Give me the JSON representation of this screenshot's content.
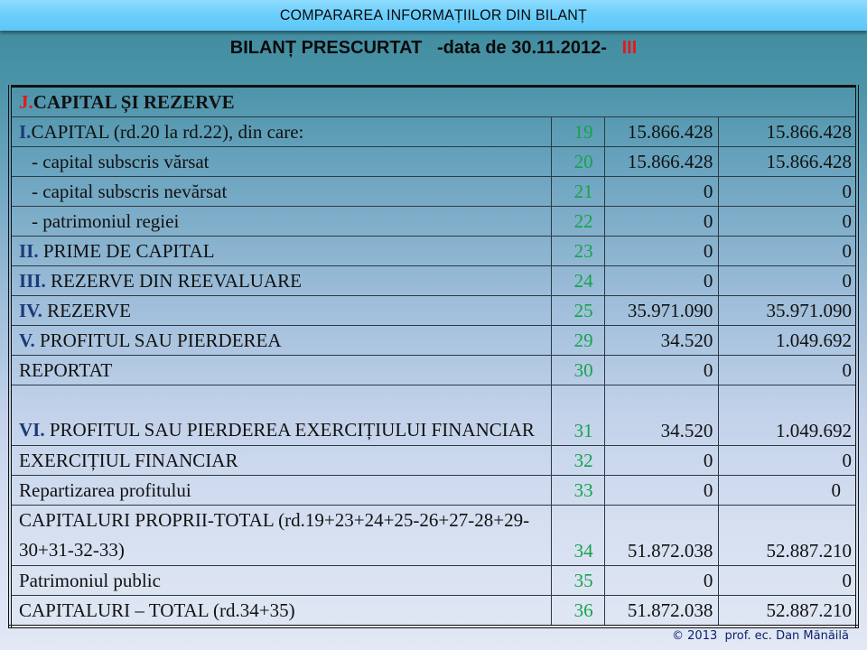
{
  "header": {
    "banner_title": "COMPARAREA  INFORMAȚIILOR  DIN BILANȚ",
    "subtitle_main": "BILANȚ PRESCURTAT   -data de 30.11.2012-   ",
    "subtitle_roman": "III"
  },
  "table": {
    "section_title": {
      "prefix": "J.",
      "text": "CAPITAL ȘI REZERVE"
    },
    "rows": [
      {
        "prefix": "I.",
        "label": "CAPITAL (rd.20 la rd.22), din care:",
        "code": "19",
        "v1": "15.866.428",
        "v2": "15.866.428"
      },
      {
        "prefix": "",
        "label": "- capital subscris vărsat",
        "code": "20",
        "v1": "15.866.428",
        "v2": "15.866.428"
      },
      {
        "prefix": "",
        "label": "- capital subscris nevărsat",
        "code": "21",
        "v1": "0",
        "v2": "0"
      },
      {
        "prefix": "",
        "label": "- patrimoniul regiei",
        "code": "22",
        "v1": "0",
        "v2": "0"
      },
      {
        "prefix": "II.",
        "label": " PRIME DE CAPITAL",
        "code": "23",
        "v1": "0",
        "v2": "0"
      },
      {
        "prefix": "III.",
        "label": " REZERVE DIN REEVALUARE",
        "code": "24",
        "v1": "0",
        "v2": "0"
      },
      {
        "prefix": "IV.",
        "label": " REZERVE",
        "code": "25",
        "v1": "35.971.090",
        "v2": "35.971.090"
      },
      {
        "prefix": "V.",
        "label": " PROFITUL SAU PIERDEREA",
        "code": "29",
        "v1": "34.520",
        "v2": "1.049.692"
      },
      {
        "prefix": "",
        "label": "REPORTAT",
        "code": "30",
        "v1": "0",
        "v2": "0"
      },
      {
        "prefix": "VI.",
        "label": " PROFITUL SAU  PIERDEREA EXERCIȚIULUI FINANCIAR",
        "code": "31",
        "v1": "34.520",
        "v2": "1.049.692"
      },
      {
        "prefix": "",
        "label": "EXERCIȚIUL FINANCIAR",
        "code": "32",
        "v1": "0",
        "v2": "0"
      },
      {
        "prefix": "",
        "label": "Repartizarea profitului",
        "code": "33",
        "v1": "0",
        "v2": "0"
      },
      {
        "prefix": "",
        "label": "CAPITALURI PROPRII-TOTAL (rd.19+23+24+25-26+27-28+29-30+31-32-33)",
        "code": "34",
        "v1": "51.872.038",
        "v2": "52.887.210"
      },
      {
        "prefix": "",
        "label": "Patrimoniul public",
        "code": "35",
        "v1": "0",
        "v2": "0"
      },
      {
        "prefix": "",
        "label": "CAPITALURI – TOTAL (rd.34+35)",
        "code": "36",
        "v1": "51.872.038",
        "v2": "52.887.210"
      }
    ]
  },
  "footer": {
    "copyright": "© 2013  prof. ec. Dan Mănăilă"
  },
  "colors": {
    "banner": "#6ccffc",
    "roman_accent": "#e31a1a",
    "row_code": "#16a34a",
    "roman_prefix": "#1b3a7a"
  }
}
